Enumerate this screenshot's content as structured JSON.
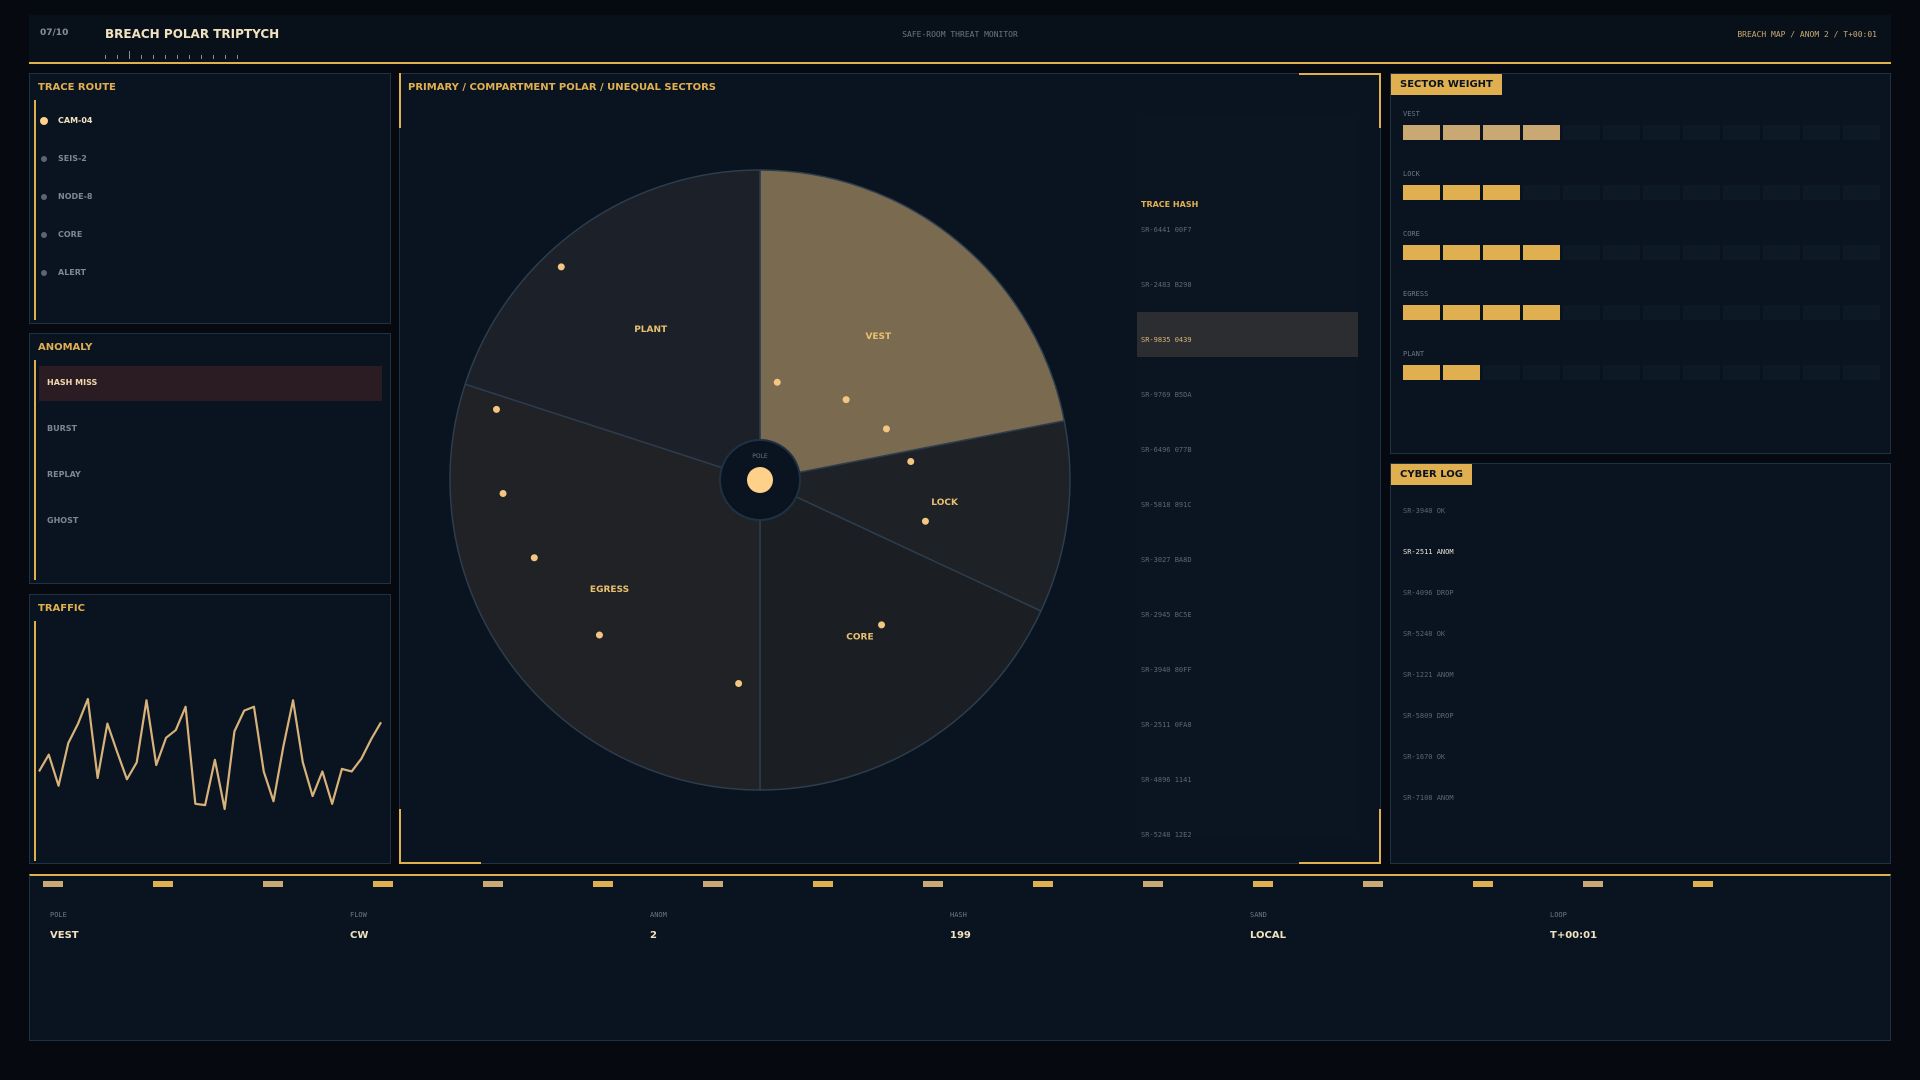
{
  "header": {
    "counter": "07/10",
    "title": "BREACH POLAR TRIPTYCH",
    "subtitle": "SAFE-ROOM THREAT MONITOR",
    "breadcrumb": "BREACH MAP / ANOM 2 / T+00:01"
  },
  "trace_route": {
    "title": "TRACE ROUTE",
    "items": [
      "CAM-04",
      "SEIS-2",
      "NODE-8",
      "CORE",
      "ALERT"
    ],
    "active": 0
  },
  "anomaly": {
    "title": "ANOMALY",
    "items": [
      "HASH MISS",
      "BURST",
      "REPLAY",
      "GHOST"
    ],
    "active": 0
  },
  "traffic": {
    "title": "TRAFFIC",
    "values": [
      43,
      56,
      32,
      65,
      80,
      99,
      38,
      80,
      58,
      37,
      50,
      98,
      48,
      69,
      75,
      93,
      18,
      17,
      52,
      14,
      74,
      90,
      93,
      43,
      20,
      62,
      98,
      50,
      24,
      43,
      18,
      45,
      43,
      53,
      68,
      81
    ]
  },
  "polar": {
    "title": "PRIMARY / COMPARTMENT POLAR / UNEQUAL SECTORS",
    "center_label": "POLE",
    "active": 0,
    "sectors": [
      {
        "name": "VEST",
        "span": 79
      },
      {
        "name": "LOCK",
        "span": 36
      },
      {
        "name": "CORE",
        "span": 65
      },
      {
        "name": "EGRESS",
        "span": 108
      },
      {
        "name": "PLANT",
        "span": 72
      }
    ],
    "points": [
      {
        "angle": 10,
        "r": 0.32
      },
      {
        "angle": 47,
        "r": 0.38
      },
      {
        "angle": 68,
        "r": 0.44
      },
      {
        "angle": 83,
        "r": 0.49
      },
      {
        "angle": 104,
        "r": 0.55
      },
      {
        "angle": 140,
        "r": 0.61
      },
      {
        "angle": 186,
        "r": 0.66
      },
      {
        "angle": 226,
        "r": 0.72
      },
      {
        "angle": 251,
        "r": 0.77
      },
      {
        "angle": 267,
        "r": 0.83
      },
      {
        "angle": 285,
        "r": 0.88
      },
      {
        "angle": 317,
        "r": 0.94
      }
    ]
  },
  "trace_hash": {
    "title": "TRACE HASH",
    "items": [
      "SR-6441 00F7",
      "SR-2483 B298",
      "SR-9835 0439",
      "SR-9769 B5DA",
      "SR-6496 077B",
      "SR-5818 891C",
      "SR-3027 BA8D",
      "SR-2945 BC5E",
      "SR-3940 80FF",
      "SR-2511 0FA8",
      "SR-4896 1141",
      "SR-5248 12E2"
    ],
    "active": 2
  },
  "sector_weight": {
    "title": "SECTOR WEIGHT",
    "cells": 12,
    "active": 0,
    "rows": [
      {
        "name": "VEST",
        "weight": 4
      },
      {
        "name": "LOCK",
        "weight": 3
      },
      {
        "name": "CORE",
        "weight": 4
      },
      {
        "name": "EGRESS",
        "weight": 4
      },
      {
        "name": "PLANT",
        "weight": 2
      }
    ]
  },
  "cyber_log": {
    "title": "CYBER LOG",
    "entries": [
      "SR-3940 OK",
      "SR-2511 ANOM",
      "SR-4096 DROP",
      "SR-5248 OK",
      "SR-1221 ANOM",
      "SR-5809 DROP",
      "SR-1670 OK",
      "SR-7108 ANOM"
    ],
    "active": 1
  },
  "footer": {
    "stats": [
      {
        "label": "POLE",
        "value": "VEST"
      },
      {
        "label": "FLOW",
        "value": "CW"
      },
      {
        "label": "ANOM",
        "value": "2"
      },
      {
        "label": "HASH",
        "value": "199"
      },
      {
        "label": "SAND",
        "value": "LOCAL"
      },
      {
        "label": "LOOP",
        "value": "T+00:01"
      }
    ]
  }
}
